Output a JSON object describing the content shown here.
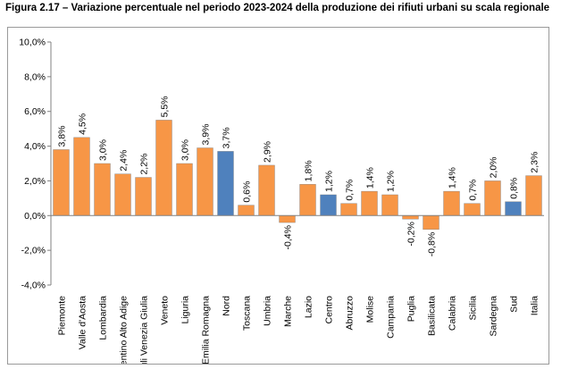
{
  "figure_title": "Figura 2.17 – Variazione percentuale nel periodo 2023-2024 della produzione dei rifiuti urbani su scala regionale",
  "colors": {
    "region": "#F79646",
    "macro": "#4F81BD",
    "axis": "#808080",
    "grid": "#D9D9D9"
  },
  "chart_data": {
    "type": "bar",
    "title": "",
    "xlabel": "",
    "ylabel": "",
    "ylim": [
      -4,
      10
    ],
    "yticks": [
      "-4,0%",
      "-2,0%",
      "0,0%",
      "2,0%",
      "4,0%",
      "6,0%",
      "8,0%",
      "10,0%"
    ],
    "grid": false,
    "categories": [
      "Piemonte",
      "Valle d'Aosta",
      "Lombardia",
      "Trentino Alto Adige",
      "Friuli Venezia Giulia",
      "Veneto",
      "Liguria",
      "Emilia Romagna",
      "Nord",
      "Toscana",
      "Umbria",
      "Marche",
      "Lazio",
      "Centro",
      "Abruzzo",
      "Molise",
      "Campania",
      "Puglia",
      "Basilicata",
      "Calabria",
      "Sicilia",
      "Sardegna",
      "Sud",
      "Italia"
    ],
    "values": [
      3.8,
      4.5,
      3.0,
      2.4,
      2.2,
      5.5,
      3.0,
      3.9,
      3.7,
      0.6,
      2.9,
      -0.4,
      1.8,
      1.2,
      0.7,
      1.4,
      1.2,
      -0.2,
      -0.8,
      1.4,
      0.7,
      2.0,
      0.8,
      2.3
    ],
    "value_labels": [
      "3,8%",
      "4,5%",
      "3,0%",
      "2,4%",
      "2,2%",
      "5,5%",
      "3,0%",
      "3,9%",
      "3,7%",
      "0,6%",
      "2,9%",
      "-0,4%",
      "1,8%",
      "1,2%",
      "0,7%",
      "1,4%",
      "1,2%",
      "-0,2%",
      "-0,8%",
      "1,4%",
      "0,7%",
      "2,0%",
      "0,8%",
      "2,3%"
    ],
    "bar_kind": [
      "region",
      "region",
      "region",
      "region",
      "region",
      "region",
      "region",
      "region",
      "macro",
      "region",
      "region",
      "region",
      "region",
      "macro",
      "region",
      "region",
      "region",
      "region",
      "region",
      "region",
      "region",
      "region",
      "macro",
      "region"
    ]
  }
}
